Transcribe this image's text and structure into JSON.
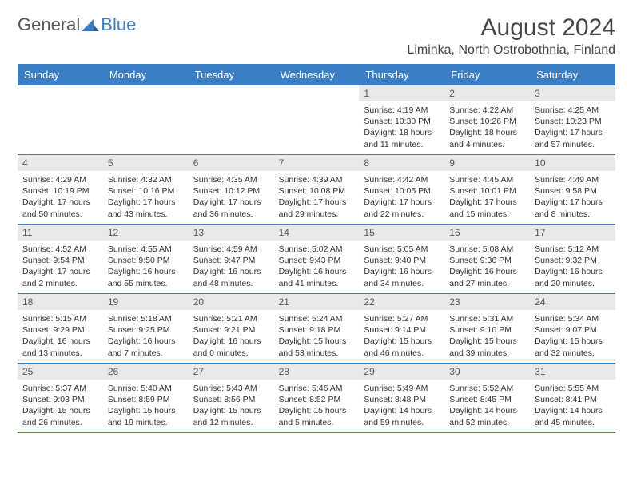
{
  "logo": {
    "part1": "General",
    "part2": "Blue"
  },
  "title": {
    "month": "August 2024",
    "location": "Liminka, North Ostrobothnia, Finland"
  },
  "colors": {
    "header_bg": "#3a7fc4",
    "header_text": "#ffffff",
    "daynum_bg": "#e9e9e9",
    "week_border": "#3a7fc4",
    "body_text": "#333333"
  },
  "dayHeaders": [
    "Sunday",
    "Monday",
    "Tuesday",
    "Wednesday",
    "Thursday",
    "Friday",
    "Saturday"
  ],
  "weeks": [
    [
      {
        "empty": true
      },
      {
        "empty": true
      },
      {
        "empty": true
      },
      {
        "empty": true
      },
      {
        "num": "1",
        "sunrise": "4:19 AM",
        "sunset": "10:30 PM",
        "daylight": "18 hours and 11 minutes."
      },
      {
        "num": "2",
        "sunrise": "4:22 AM",
        "sunset": "10:26 PM",
        "daylight": "18 hours and 4 minutes."
      },
      {
        "num": "3",
        "sunrise": "4:25 AM",
        "sunset": "10:23 PM",
        "daylight": "17 hours and 57 minutes."
      }
    ],
    [
      {
        "num": "4",
        "sunrise": "4:29 AM",
        "sunset": "10:19 PM",
        "daylight": "17 hours and 50 minutes."
      },
      {
        "num": "5",
        "sunrise": "4:32 AM",
        "sunset": "10:16 PM",
        "daylight": "17 hours and 43 minutes."
      },
      {
        "num": "6",
        "sunrise": "4:35 AM",
        "sunset": "10:12 PM",
        "daylight": "17 hours and 36 minutes."
      },
      {
        "num": "7",
        "sunrise": "4:39 AM",
        "sunset": "10:08 PM",
        "daylight": "17 hours and 29 minutes."
      },
      {
        "num": "8",
        "sunrise": "4:42 AM",
        "sunset": "10:05 PM",
        "daylight": "17 hours and 22 minutes."
      },
      {
        "num": "9",
        "sunrise": "4:45 AM",
        "sunset": "10:01 PM",
        "daylight": "17 hours and 15 minutes."
      },
      {
        "num": "10",
        "sunrise": "4:49 AM",
        "sunset": "9:58 PM",
        "daylight": "17 hours and 8 minutes."
      }
    ],
    [
      {
        "num": "11",
        "sunrise": "4:52 AM",
        "sunset": "9:54 PM",
        "daylight": "17 hours and 2 minutes."
      },
      {
        "num": "12",
        "sunrise": "4:55 AM",
        "sunset": "9:50 PM",
        "daylight": "16 hours and 55 minutes."
      },
      {
        "num": "13",
        "sunrise": "4:59 AM",
        "sunset": "9:47 PM",
        "daylight": "16 hours and 48 minutes."
      },
      {
        "num": "14",
        "sunrise": "5:02 AM",
        "sunset": "9:43 PM",
        "daylight": "16 hours and 41 minutes."
      },
      {
        "num": "15",
        "sunrise": "5:05 AM",
        "sunset": "9:40 PM",
        "daylight": "16 hours and 34 minutes."
      },
      {
        "num": "16",
        "sunrise": "5:08 AM",
        "sunset": "9:36 PM",
        "daylight": "16 hours and 27 minutes."
      },
      {
        "num": "17",
        "sunrise": "5:12 AM",
        "sunset": "9:32 PM",
        "daylight": "16 hours and 20 minutes."
      }
    ],
    [
      {
        "num": "18",
        "sunrise": "5:15 AM",
        "sunset": "9:29 PM",
        "daylight": "16 hours and 13 minutes."
      },
      {
        "num": "19",
        "sunrise": "5:18 AM",
        "sunset": "9:25 PM",
        "daylight": "16 hours and 7 minutes."
      },
      {
        "num": "20",
        "sunrise": "5:21 AM",
        "sunset": "9:21 PM",
        "daylight": "16 hours and 0 minutes."
      },
      {
        "num": "21",
        "sunrise": "5:24 AM",
        "sunset": "9:18 PM",
        "daylight": "15 hours and 53 minutes."
      },
      {
        "num": "22",
        "sunrise": "5:27 AM",
        "sunset": "9:14 PM",
        "daylight": "15 hours and 46 minutes."
      },
      {
        "num": "23",
        "sunrise": "5:31 AM",
        "sunset": "9:10 PM",
        "daylight": "15 hours and 39 minutes."
      },
      {
        "num": "24",
        "sunrise": "5:34 AM",
        "sunset": "9:07 PM",
        "daylight": "15 hours and 32 minutes."
      }
    ],
    [
      {
        "num": "25",
        "sunrise": "5:37 AM",
        "sunset": "9:03 PM",
        "daylight": "15 hours and 26 minutes."
      },
      {
        "num": "26",
        "sunrise": "5:40 AM",
        "sunset": "8:59 PM",
        "daylight": "15 hours and 19 minutes."
      },
      {
        "num": "27",
        "sunrise": "5:43 AM",
        "sunset": "8:56 PM",
        "daylight": "15 hours and 12 minutes."
      },
      {
        "num": "28",
        "sunrise": "5:46 AM",
        "sunset": "8:52 PM",
        "daylight": "15 hours and 5 minutes."
      },
      {
        "num": "29",
        "sunrise": "5:49 AM",
        "sunset": "8:48 PM",
        "daylight": "14 hours and 59 minutes."
      },
      {
        "num": "30",
        "sunrise": "5:52 AM",
        "sunset": "8:45 PM",
        "daylight": "14 hours and 52 minutes."
      },
      {
        "num": "31",
        "sunrise": "5:55 AM",
        "sunset": "8:41 PM",
        "daylight": "14 hours and 45 minutes."
      }
    ]
  ],
  "labels": {
    "sunrise": "Sunrise: ",
    "sunset": "Sunset: ",
    "daylight": "Daylight: "
  }
}
